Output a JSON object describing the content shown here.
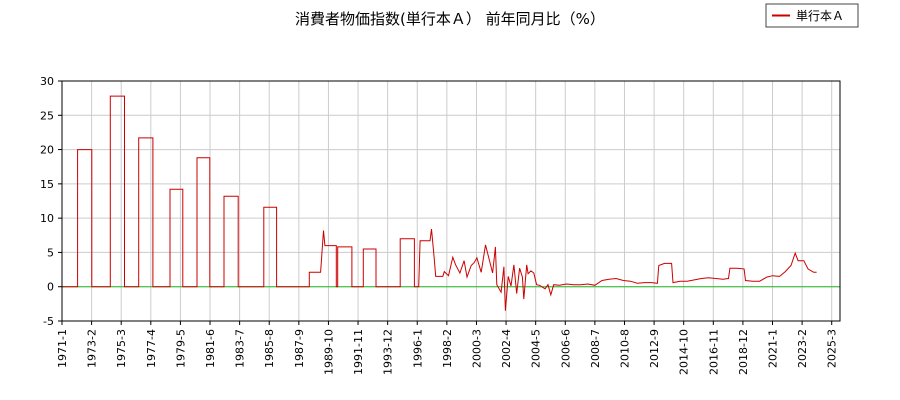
{
  "chart_data": {
    "type": "line",
    "title": "消費者物価指数(単行本Ａ） 前年同月比（%）",
    "xlabel": "",
    "ylabel": "",
    "ylim": [
      -5,
      30
    ],
    "y_ticks": [
      "-5",
      "0",
      "5",
      "10",
      "15",
      "20",
      "25",
      "30"
    ],
    "x_ticks": [
      "1971-1",
      "1973-2",
      "1975-3",
      "1977-4",
      "1979-5",
      "1981-6",
      "1983-7",
      "1985-8",
      "1987-9",
      "1989-10",
      "1991-11",
      "1993-12",
      "1996-1",
      "1998-2",
      "2000-3",
      "2002-4",
      "2004-5",
      "2006-6",
      "2008-7",
      "2010-8",
      "2012-9",
      "2014-10",
      "2016-11",
      "2018-12",
      "2021-1",
      "2023-2",
      "2025-3"
    ],
    "grid": true,
    "legend": "top-right",
    "series": [
      {
        "name": "単行本Ａ",
        "color": "#cc0000",
        "points": [
          [
            1971.0,
            0
          ],
          [
            1972.1,
            0
          ],
          [
            1972.1,
            20
          ],
          [
            1973.1,
            20
          ],
          [
            1973.1,
            0
          ],
          [
            1974.4,
            0
          ],
          [
            1974.4,
            27.8
          ],
          [
            1975.4,
            27.8
          ],
          [
            1975.4,
            0
          ],
          [
            1976.4,
            0
          ],
          [
            1976.4,
            21.7
          ],
          [
            1977.4,
            21.7
          ],
          [
            1977.4,
            0
          ],
          [
            1978.6,
            0
          ],
          [
            1978.6,
            14.2
          ],
          [
            1979.5,
            14.2
          ],
          [
            1979.5,
            0
          ],
          [
            1980.5,
            0
          ],
          [
            1980.5,
            18.8
          ],
          [
            1981.4,
            18.8
          ],
          [
            1981.4,
            0
          ],
          [
            1982.4,
            0
          ],
          [
            1982.4,
            13.2
          ],
          [
            1983.4,
            13.2
          ],
          [
            1983.4,
            0
          ],
          [
            1985.2,
            0
          ],
          [
            1985.2,
            11.6
          ],
          [
            1986.1,
            11.6
          ],
          [
            1986.1,
            0
          ],
          [
            1988.4,
            0
          ],
          [
            1988.4,
            2.1
          ],
          [
            1989.2,
            2.1
          ],
          [
            1989.4,
            8.2
          ],
          [
            1989.5,
            6.0
          ],
          [
            1990.3,
            6.0
          ],
          [
            1990.3,
            0
          ],
          [
            1990.4,
            0
          ],
          [
            1990.4,
            5.8
          ],
          [
            1991.4,
            5.8
          ],
          [
            1991.4,
            0
          ],
          [
            1992.2,
            0
          ],
          [
            1992.2,
            5.5
          ],
          [
            1993.1,
            5.5
          ],
          [
            1993.1,
            0
          ],
          [
            1994.8,
            0
          ],
          [
            1994.8,
            7.0
          ],
          [
            1995.8,
            7.0
          ],
          [
            1995.8,
            0
          ],
          [
            1996.1,
            0
          ],
          [
            1996.2,
            6.7
          ],
          [
            1996.9,
            6.7
          ],
          [
            1997.0,
            8.4
          ],
          [
            1997.2,
            4.0
          ],
          [
            1997.3,
            1.5
          ],
          [
            1997.8,
            1.5
          ],
          [
            1997.9,
            2.2
          ],
          [
            1998.2,
            1.6
          ],
          [
            1998.5,
            4.3
          ],
          [
            1998.7,
            3.2
          ],
          [
            1999.0,
            2.0
          ],
          [
            1999.3,
            3.8
          ],
          [
            1999.5,
            1.4
          ],
          [
            1999.8,
            3.1
          ],
          [
            2000.0,
            3.5
          ],
          [
            2000.2,
            4.2
          ],
          [
            2000.5,
            2.1
          ],
          [
            2000.8,
            6.1
          ],
          [
            2001.0,
            4.5
          ],
          [
            2001.3,
            2.0
          ],
          [
            2001.5,
            5.8
          ],
          [
            2001.6,
            0.3
          ],
          [
            2001.9,
            -0.8
          ],
          [
            2002.1,
            2.9
          ],
          [
            2002.2,
            -3.5
          ],
          [
            2002.4,
            1.5
          ],
          [
            2002.6,
            0.1
          ],
          [
            2002.8,
            3.2
          ],
          [
            2003.0,
            -1.0
          ],
          [
            2003.2,
            2.7
          ],
          [
            2003.4,
            1.4
          ],
          [
            2003.5,
            -1.8
          ],
          [
            2003.7,
            3.2
          ],
          [
            2003.8,
            1.9
          ],
          [
            2004.0,
            2.3
          ],
          [
            2004.2,
            2.0
          ],
          [
            2004.4,
            0.3
          ],
          [
            2004.6,
            0.2
          ],
          [
            2005.0,
            -0.3
          ],
          [
            2005.2,
            0.3
          ],
          [
            2005.4,
            -1.2
          ],
          [
            2005.6,
            0.3
          ],
          [
            2006.0,
            0.2
          ],
          [
            2006.5,
            0.4
          ],
          [
            2007.0,
            0.3
          ],
          [
            2007.5,
            0.3
          ],
          [
            2008.0,
            0.4
          ],
          [
            2008.5,
            0.2
          ],
          [
            2009.0,
            0.9
          ],
          [
            2009.5,
            1.1
          ],
          [
            2010.0,
            1.2
          ],
          [
            2010.5,
            0.9
          ],
          [
            2011.0,
            0.8
          ],
          [
            2011.5,
            0.5
          ],
          [
            2012.0,
            0.6
          ],
          [
            2012.5,
            0.6
          ],
          [
            2012.9,
            0.5
          ],
          [
            2013.0,
            3.1
          ],
          [
            2013.4,
            3.4
          ],
          [
            2013.9,
            3.4
          ],
          [
            2014.0,
            0.6
          ],
          [
            2014.5,
            0.8
          ],
          [
            2015.0,
            0.8
          ],
          [
            2015.5,
            1.0
          ],
          [
            2016.0,
            1.2
          ],
          [
            2016.5,
            1.3
          ],
          [
            2017.0,
            1.2
          ],
          [
            2017.5,
            1.1
          ],
          [
            2017.9,
            1.2
          ],
          [
            2018.0,
            2.7
          ],
          [
            2018.5,
            2.7
          ],
          [
            2019.0,
            2.6
          ],
          [
            2019.1,
            0.9
          ],
          [
            2019.6,
            0.8
          ],
          [
            2020.1,
            0.8
          ],
          [
            2020.6,
            1.4
          ],
          [
            2021.0,
            1.6
          ],
          [
            2021.5,
            1.5
          ],
          [
            2021.9,
            2.2
          ],
          [
            2022.3,
            3.1
          ],
          [
            2022.6,
            4.9
          ],
          [
            2022.8,
            3.8
          ],
          [
            2023.2,
            3.8
          ],
          [
            2023.5,
            2.6
          ],
          [
            2023.9,
            2.1
          ],
          [
            2024.1,
            2.1
          ]
        ]
      }
    ],
    "zero_line_color": "#22bb22"
  }
}
